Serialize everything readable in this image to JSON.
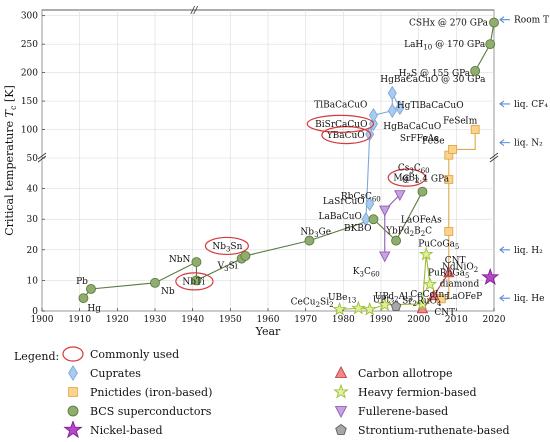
{
  "chart_data": {
    "type": "scatter",
    "xlabel": "Year",
    "ylabel": "Critical temperature T_c [K]",
    "x_ticks": [
      1900,
      1910,
      1920,
      1930,
      1940,
      1950,
      1960,
      1970,
      1980,
      1990,
      2000,
      2010,
      2020
    ],
    "x_tick_labels": [
      "1900",
      "1910",
      "1920",
      "1930",
      "1940",
      "1950",
      "1960",
      "1970",
      "1980",
      "1990",
      "2000",
      "2010",
      "2020"
    ],
    "y_ticks_lower": [
      0,
      10,
      20,
      30,
      40,
      50
    ],
    "y_ticks_upper": [
      100,
      150,
      200,
      250,
      300
    ],
    "ylim_lower": [
      0,
      50
    ],
    "ylim_upper": [
      50,
      310
    ],
    "grid": true,
    "reference_lines": [
      {
        "label": "Room T",
        "value": 293,
        "region": "upper"
      },
      {
        "label": "liq. CF₄",
        "value": 145,
        "region": "upper"
      },
      {
        "label": "liq. N₂",
        "value": 77,
        "region": "upper"
      },
      {
        "label": "liq. H₂",
        "value": 20,
        "region": "lower"
      },
      {
        "label": "liq. He",
        "value": 4.2,
        "region": "lower"
      }
    ],
    "series": [
      {
        "name": "Cuprates",
        "marker": "diamond",
        "color": "#a9cbf0",
        "edge": "#7ea8d8",
        "points": [
          {
            "x": 1986,
            "y": 30,
            "label": "LaBaCuO"
          },
          {
            "x": 1987,
            "y": 35,
            "label": "LaSrCuO"
          },
          {
            "x": 1987,
            "y": 92,
            "label": "YBaCuO"
          },
          {
            "x": 1988,
            "y": 110,
            "label": "BiSrCaCuO"
          },
          {
            "x": 1988,
            "y": 125,
            "label": "TlBaCaCuO"
          },
          {
            "x": 1993,
            "y": 133,
            "label": "HgBaCaCuO"
          },
          {
            "x": 1993,
            "y": 164,
            "label": "HgBaCaCuO @ 30 GPa"
          },
          {
            "x": 1995,
            "y": 138,
            "label": "HgTlBaCaCuO"
          }
        ]
      },
      {
        "name": "Pnictides (iron-based)",
        "marker": "square",
        "color": "#fbd38d",
        "edge": "#e0a84a",
        "points": [
          {
            "x": 2006,
            "y": 4,
            "label": "LaOFeP"
          },
          {
            "x": 2008,
            "y": 26,
            "label": "LaOFeAs"
          },
          {
            "x": 2008,
            "y": 43,
            "label": ""
          },
          {
            "x": 2008,
            "y": 55,
            "label": "SrFFeAs"
          },
          {
            "x": 2009,
            "y": 65,
            "label": "FeSe"
          },
          {
            "x": 2015,
            "y": 100,
            "label": "FeSe Im"
          }
        ]
      },
      {
        "name": "BCS superconductors",
        "marker": "circle",
        "color": "#8fae6e",
        "edge": "#5b7a3f",
        "points": [
          {
            "x": 1911,
            "y": 4.2,
            "label": "Hg"
          },
          {
            "x": 1913,
            "y": 7.2,
            "label": "Pb"
          },
          {
            "x": 1930,
            "y": 9.2,
            "label": "Nb"
          },
          {
            "x": 1941,
            "y": 16,
            "label": "NbN"
          },
          {
            "x": 1941,
            "y": 10,
            "label": "NbTi"
          },
          {
            "x": 1953,
            "y": 17.1,
            "label": "V3Si"
          },
          {
            "x": 1954,
            "y": 18,
            "label": "Nb3Sn"
          },
          {
            "x": 1971,
            "y": 23,
            "label": "Nb3Ge"
          },
          {
            "x": 1988,
            "y": 30,
            "label": "BKBO"
          },
          {
            "x": 1994,
            "y": 23,
            "label": "YbPd2B2C"
          },
          {
            "x": 2001,
            "y": 39,
            "label": "MgB2"
          },
          {
            "x": 2015,
            "y": 203,
            "label": "H2S @ 155 GPa"
          },
          {
            "x": 2019,
            "y": 250,
            "label": "LaH10 @ 170 GPa"
          },
          {
            "x": 2020,
            "y": 288,
            "label": "CSHx @ 270 GPa"
          }
        ]
      },
      {
        "name": "Nickel-based",
        "marker": "star",
        "color": "#b545c9",
        "edge": "#7e1e8f",
        "points": [
          {
            "x": 2019,
            "y": 11,
            "label": "NdNiO2"
          }
        ]
      },
      {
        "name": "Carbon allotrope",
        "marker": "triangle-up",
        "color": "#f08a8a",
        "edge": "#c43c3c",
        "points": [
          {
            "x": 2001,
            "y": 0.7,
            "label": "CNT"
          },
          {
            "x": 2004,
            "y": 5,
            "label": "diamond"
          },
          {
            "x": 2008,
            "y": 12.5,
            "label": "CNT"
          }
        ]
      },
      {
        "name": "Heavy fermion-based",
        "marker": "star-outline",
        "color": "#dff29a",
        "edge": "#9dbd3a",
        "points": [
          {
            "x": 1979,
            "y": 0.5,
            "label": "CeCu2Si2"
          },
          {
            "x": 1984,
            "y": 0.9,
            "label": "UBe13"
          },
          {
            "x": 1987,
            "y": 0.5,
            "label": "UPt3"
          },
          {
            "x": 1991,
            "y": 2,
            "label": "UPd2Al3"
          },
          {
            "x": 2001,
            "y": 2.3,
            "label": "CeCoIn5"
          },
          {
            "x": 2002,
            "y": 18.5,
            "label": "PuCoGa5"
          },
          {
            "x": 2003,
            "y": 8.7,
            "label": "PuRhGa5"
          }
        ]
      },
      {
        "name": "Fullerene-based",
        "marker": "triangle-down",
        "color": "#c6a3de",
        "edge": "#8f5cb5",
        "points": [
          {
            "x": 1991,
            "y": 18,
            "label": "K3C60"
          },
          {
            "x": 1991,
            "y": 33,
            "label": "RbCsC60"
          },
          {
            "x": 1995,
            "y": 38,
            "label": "Cs3C60 @ 1.4 GPa"
          }
        ]
      },
      {
        "name": "Strontium-ruthenate-based",
        "marker": "pentagon",
        "color": "#a7a7a7",
        "edge": "#5e5e5e",
        "points": [
          {
            "x": 1994,
            "y": 1.5,
            "label": "Sr2RuO4"
          }
        ]
      }
    ],
    "circled_labels": [
      "Nb3Sn",
      "NbTi",
      "YBaCuO",
      "BiSrCaCuO",
      "MgB2"
    ],
    "circled_meaning": "Commonly used"
  },
  "legend": {
    "title": "Legend:",
    "commonly_used": "Commonly used"
  }
}
